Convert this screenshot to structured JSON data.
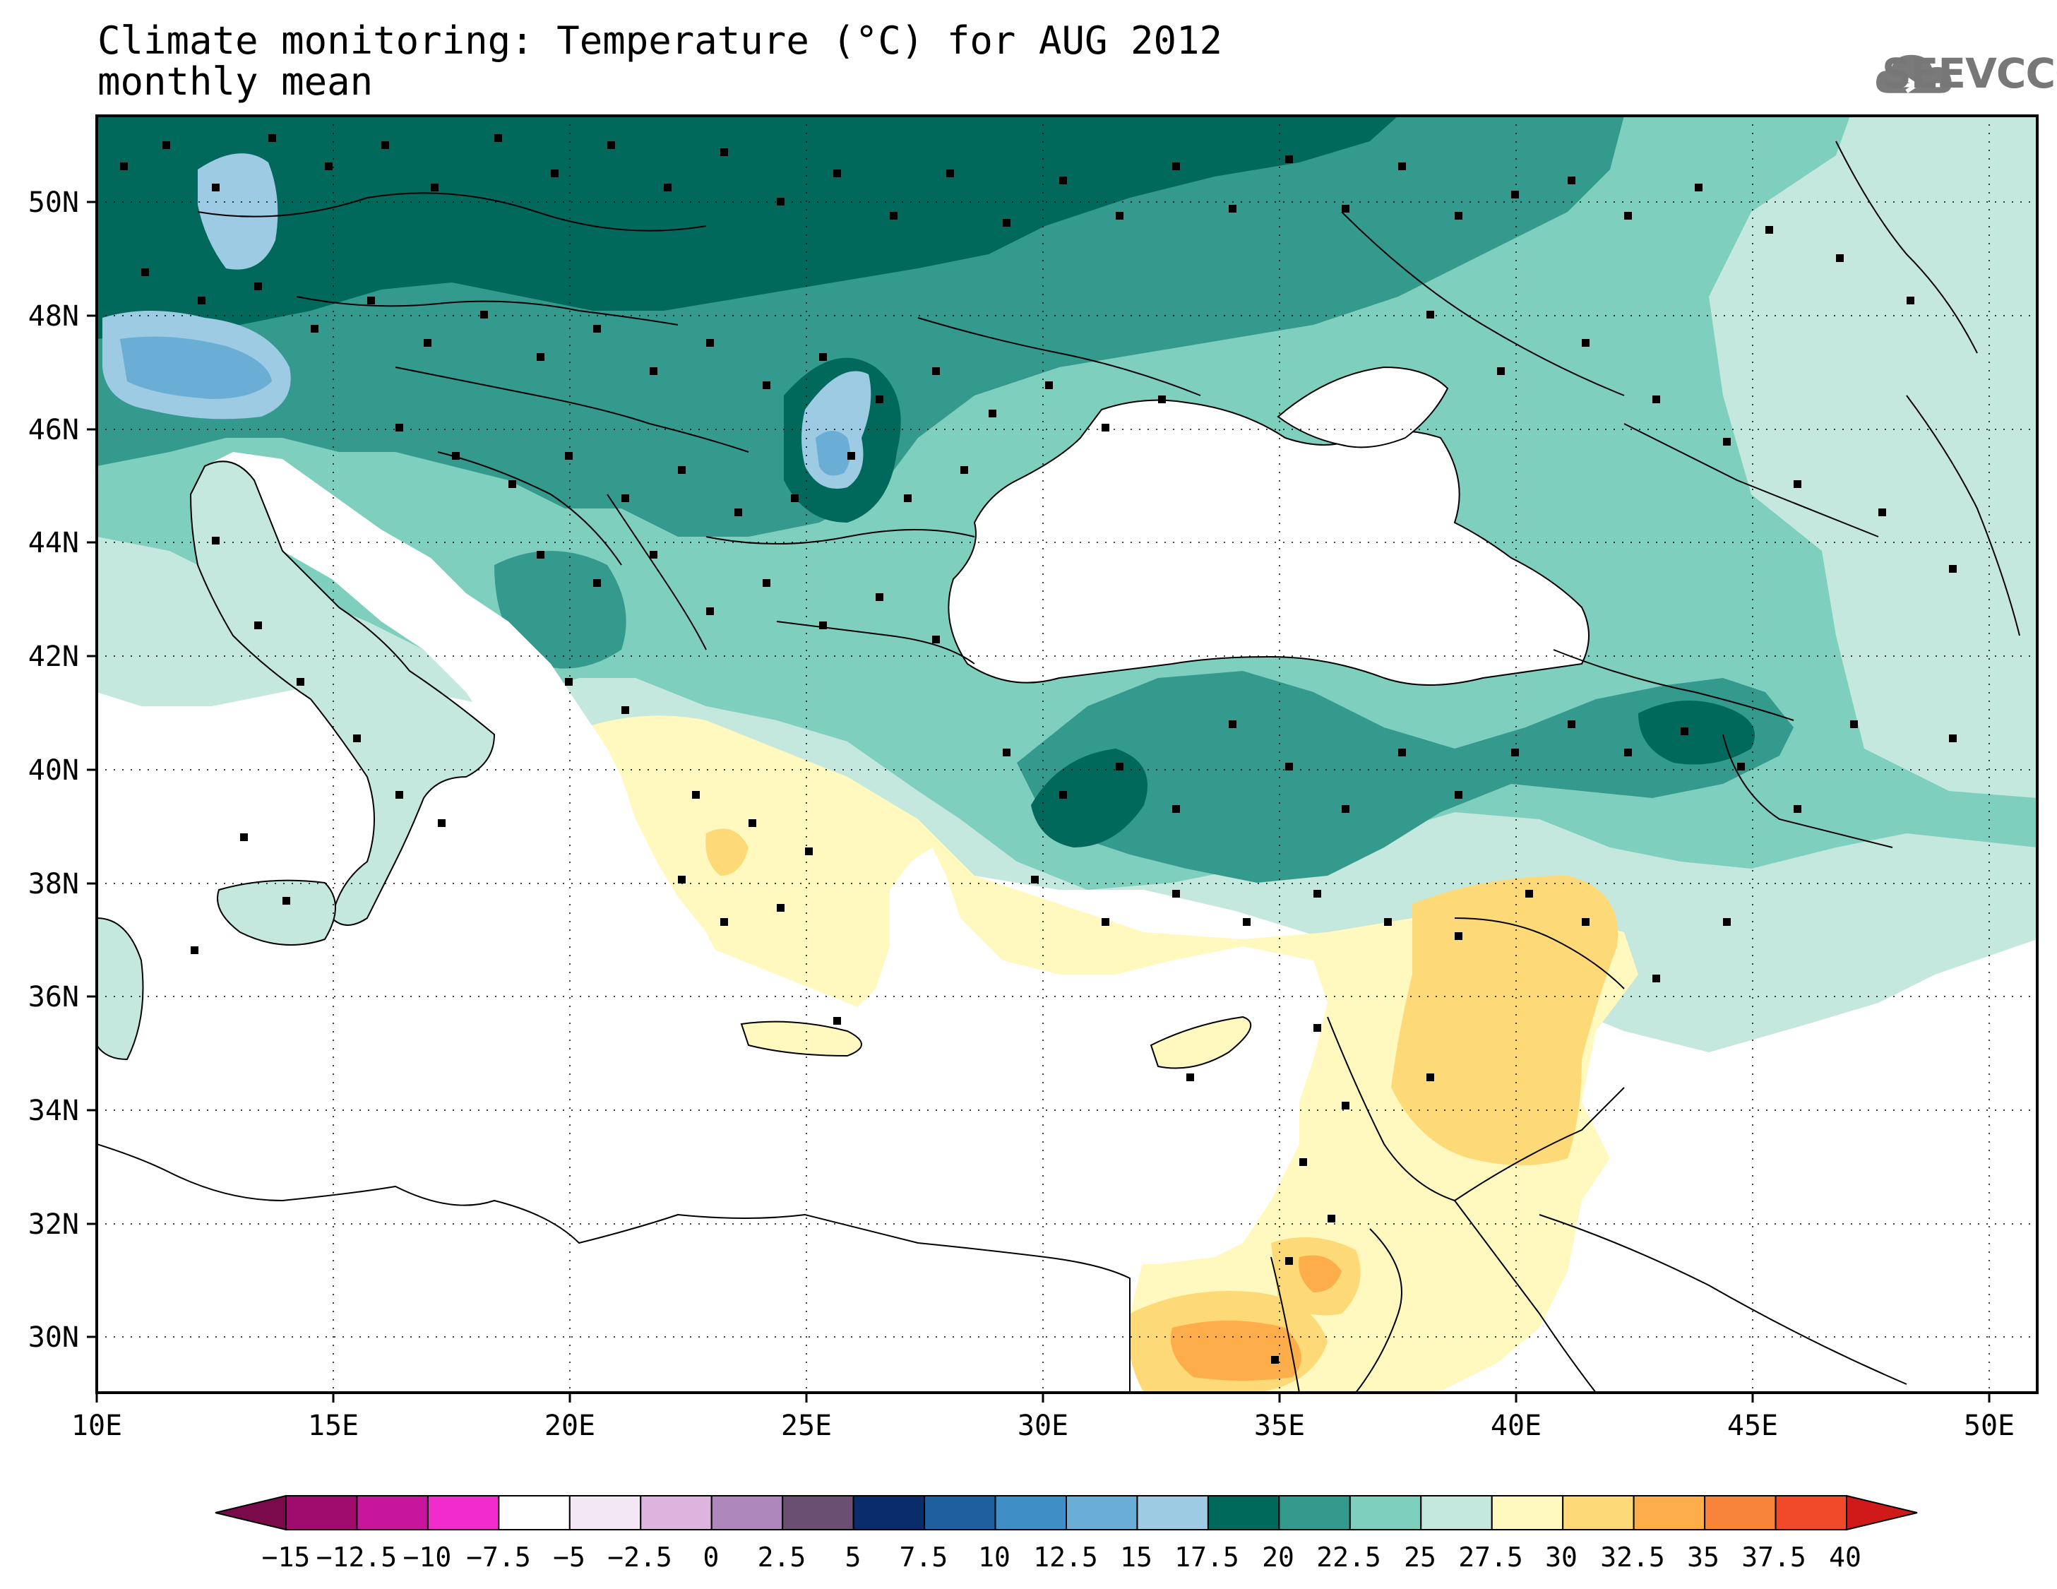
{
  "header": {
    "title": "Climate monitoring: Temperature (°C) for AUG 2012",
    "subtitle": "monthly mean",
    "logo_text": "SEEVCCC",
    "logo_icon": "cloud-icon"
  },
  "map": {
    "type": "filled-contour-map",
    "variable": "Temperature (°C)",
    "period": "AUG 2012",
    "statistic": "monthly mean",
    "lon_range": [
      10,
      51
    ],
    "lat_range": [
      29,
      51.5
    ],
    "x_ticks": [
      "10E",
      "15E",
      "20E",
      "25E",
      "30E",
      "35E",
      "40E",
      "45E",
      "50E"
    ],
    "x_tick_values": [
      10,
      15,
      20,
      25,
      30,
      35,
      40,
      45,
      50
    ],
    "y_ticks": [
      "30N",
      "32N",
      "34N",
      "36N",
      "38N",
      "40N",
      "42N",
      "44N",
      "46N",
      "48N",
      "50N"
    ],
    "y_tick_values": [
      30,
      32,
      34,
      36,
      38,
      40,
      42,
      44,
      46,
      48,
      50
    ],
    "grid": "dotted"
  },
  "colorbar": {
    "labels": [
      "−15",
      "−12.5",
      "−10",
      "−7.5",
      "−5",
      "−2.5",
      "0",
      "2.5",
      "5",
      "7.5",
      "10",
      "12.5",
      "15",
      "17.5",
      "20",
      "22.5",
      "25",
      "27.5",
      "30",
      "32.5",
      "35",
      "37.5",
      "40"
    ],
    "colors": [
      "#7a0a4a",
      "#a00c6e",
      "#c8169c",
      "#f02ccd",
      "#ffffff",
      "#f3e6f5",
      "#dcb4de",
      "#ae88bc",
      "#6b4f70",
      "#0b2c6a",
      "#1e5fa0",
      "#3f8fc6",
      "#6aaed6",
      "#9ccbe3",
      "#00695c",
      "#349a8e",
      "#7fcfbf",
      "#c5e8de",
      "#fff9bf",
      "#fed977",
      "#fdae4a",
      "#f7843a",
      "#f04a2b",
      "#d01a1a"
    ]
  }
}
